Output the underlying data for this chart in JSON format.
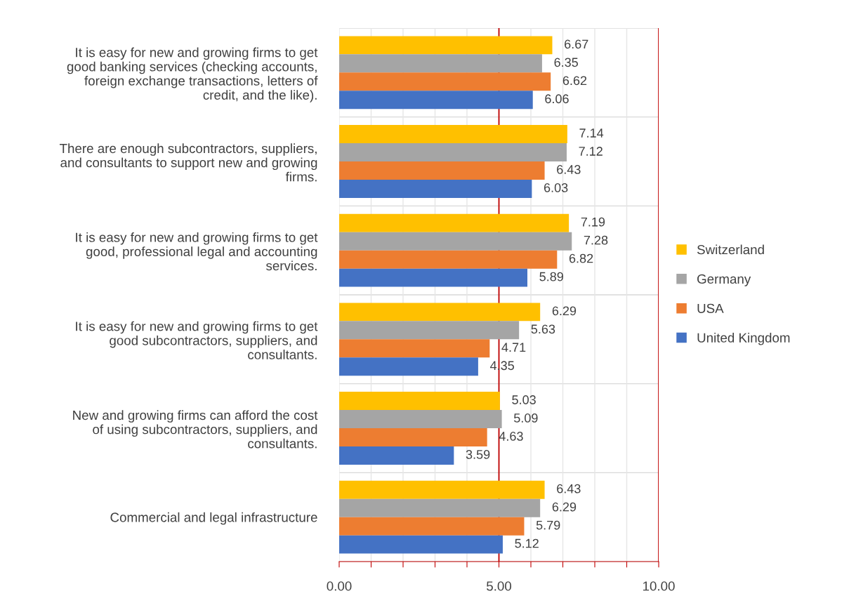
{
  "chart_data": {
    "type": "bar",
    "orientation": "horizontal",
    "categories": [
      "It is easy for new and growing firms to get\ngood banking services (checking accounts,\nforeign exchange transactions, letters of\ncredit, and the like).",
      "There are enough subcontractors, suppliers,\nand consultants to support new and growing\nfirms.",
      "It is easy for new and growing firms to get\ngood, professional legal and accounting\nservices.",
      "It is easy for new and growing firms to get\ngood subcontractors, suppliers, and\nconsultants.",
      "New and growing firms can afford the cost\nof using subcontractors, suppliers, and\nconsultants.",
      "Commercial and legal infrastructure"
    ],
    "series": [
      {
        "name": "Switzerland",
        "color": "#ffc000",
        "values": [
          6.67,
          7.14,
          7.19,
          6.29,
          5.03,
          6.43
        ]
      },
      {
        "name": "Germany",
        "color": "#a5a5a5",
        "values": [
          6.35,
          7.12,
          7.28,
          5.63,
          5.09,
          6.29
        ]
      },
      {
        "name": "USA",
        "color": "#ed7d31",
        "values": [
          6.62,
          6.43,
          6.82,
          4.71,
          4.63,
          5.79
        ]
      },
      {
        "name": "United Kingdom",
        "color": "#4472c4",
        "values": [
          6.06,
          6.03,
          5.89,
          4.35,
          3.59,
          5.12
        ]
      }
    ],
    "xlim": [
      0,
      10
    ],
    "xticks": [
      {
        "value": 0,
        "label": "0.00"
      },
      {
        "value": 1,
        "label": null
      },
      {
        "value": 2,
        "label": null
      },
      {
        "value": 3,
        "label": null
      },
      {
        "value": 4,
        "label": null
      },
      {
        "value": 5,
        "label": "5.00"
      },
      {
        "value": 6,
        "label": null
      },
      {
        "value": 7,
        "label": null
      },
      {
        "value": 8,
        "label": null
      },
      {
        "value": 9,
        "label": null
      },
      {
        "value": 10,
        "label": "10.00"
      }
    ],
    "ref_lines": [
      {
        "axis": "x",
        "value": 5,
        "label": null,
        "color": "#c00000"
      },
      {
        "axis": "x",
        "value": 10,
        "label": null,
        "color": "#c00000"
      }
    ],
    "grid": "x",
    "legend": "right",
    "data_labels": true
  }
}
